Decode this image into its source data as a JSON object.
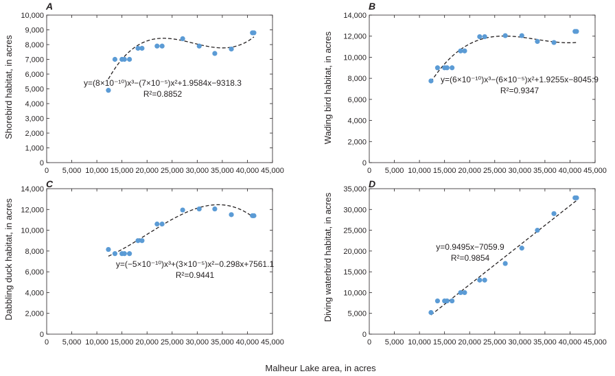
{
  "x_axis_title": "Malheur Lake area, in acres",
  "colors": {
    "point": "#5b9bd5",
    "axis": "#231f20",
    "fit": "#231f20"
  },
  "chart_data": [
    {
      "panel": "A",
      "type": "scatter",
      "ylabel": "Shorebird habitat, in acres",
      "xlim": [
        0,
        45000
      ],
      "ylim": [
        0,
        10000
      ],
      "x_ticks": [
        0,
        5000,
        10000,
        15000,
        20000,
        25000,
        30000,
        35000,
        40000,
        45000
      ],
      "x_tick_labels": [
        "0",
        "5,000",
        "10,000",
        "15,000",
        "20,000",
        "25,000",
        "30,000",
        "35,000",
        "40,000",
        "45,000"
      ],
      "y_ticks": [
        0,
        1000,
        2000,
        3000,
        4000,
        5000,
        6000,
        7000,
        8000,
        9000,
        10000
      ],
      "y_tick_labels": [
        "0",
        "1,000",
        "2,000",
        "3,000",
        "4,000",
        "5,000",
        "6,000",
        "7,000",
        "8,000",
        "9,000",
        "10,000"
      ],
      "points": [
        [
          12300,
          4900
        ],
        [
          13600,
          7000
        ],
        [
          15000,
          7000
        ],
        [
          15500,
          7000
        ],
        [
          16500,
          7000
        ],
        [
          18200,
          7750
        ],
        [
          19000,
          7750
        ],
        [
          22000,
          7900
        ],
        [
          23000,
          7900
        ],
        [
          27100,
          8400
        ],
        [
          30400,
          7900
        ],
        [
          33500,
          7400
        ],
        [
          36800,
          7700
        ],
        [
          41000,
          8800
        ],
        [
          41300,
          8800
        ]
      ],
      "fit": {
        "kind": "poly",
        "coefficients": [
          8e-10,
          -7e-05,
          1.9584,
          -9318.3
        ],
        "x_range": [
          12300,
          41300
        ]
      },
      "equation": "y=(8×10⁻¹⁰)x³−(7×10⁻⁵)x²+1.9584x−9318.3",
      "r2": "R²=0.8852"
    },
    {
      "panel": "B",
      "type": "scatter",
      "ylabel": "Wading bird habitat, in acres",
      "xlim": [
        0,
        45000
      ],
      "ylim": [
        0,
        14000
      ],
      "x_ticks": [
        0,
        5000,
        10000,
        15000,
        20000,
        25000,
        30000,
        35000,
        40000,
        45000
      ],
      "x_tick_labels": [
        "0",
        "5,000",
        "10,000",
        "15,000",
        "20,000",
        "25,000",
        "30,000",
        "35,000",
        "40,000",
        "45,000"
      ],
      "y_ticks": [
        0,
        2000,
        4000,
        6000,
        8000,
        10000,
        12000,
        14000
      ],
      "y_tick_labels": [
        "0",
        "2,000",
        "4,000",
        "6,000",
        "8,000",
        "10,000",
        "12,000",
        "14,000"
      ],
      "points": [
        [
          12300,
          7750
        ],
        [
          13600,
          9000
        ],
        [
          15000,
          9000
        ],
        [
          15500,
          9000
        ],
        [
          16500,
          9000
        ],
        [
          18200,
          10600
        ],
        [
          19000,
          10600
        ],
        [
          22000,
          11950
        ],
        [
          23000,
          11950
        ],
        [
          27100,
          12050
        ],
        [
          30400,
          12050
        ],
        [
          33500,
          11500
        ],
        [
          36800,
          11400
        ],
        [
          41000,
          12450
        ],
        [
          41300,
          12450
        ]
      ],
      "fit": {
        "kind": "poly",
        "coefficients": [
          6e-10,
          -6e-05,
          1.9255,
          -8045.9
        ],
        "x_range": [
          12300,
          41300
        ]
      },
      "equation": "y=(6×10⁻¹⁰)x³−(6×10⁻⁵)x²+1.9255x−8045.9",
      "r2": "R²=0.9347"
    },
    {
      "panel": "C",
      "type": "scatter",
      "ylabel": "Dabbling duck habitat, in acres",
      "xlim": [
        0,
        45000
      ],
      "ylim": [
        0,
        14000
      ],
      "x_ticks": [
        0,
        5000,
        10000,
        15000,
        20000,
        25000,
        30000,
        35000,
        40000,
        45000
      ],
      "x_tick_labels": [
        "0",
        "5,000",
        "10,000",
        "15,000",
        "20,000",
        "25,000",
        "30,000",
        "35,000",
        "40,000",
        "45,000"
      ],
      "y_ticks": [
        0,
        2000,
        4000,
        6000,
        8000,
        10000,
        12000,
        14000
      ],
      "y_tick_labels": [
        "0",
        "2,000",
        "4,000",
        "6,000",
        "8,000",
        "10,000",
        "12,000",
        "14,000"
      ],
      "points": [
        [
          12300,
          8150
        ],
        [
          13600,
          7750
        ],
        [
          15000,
          7750
        ],
        [
          15500,
          7750
        ],
        [
          16500,
          7750
        ],
        [
          18200,
          9000
        ],
        [
          19000,
          9000
        ],
        [
          22000,
          10600
        ],
        [
          23000,
          10600
        ],
        [
          27100,
          11950
        ],
        [
          30400,
          12050
        ],
        [
          33500,
          12050
        ],
        [
          36800,
          11500
        ],
        [
          41000,
          11400
        ],
        [
          41300,
          11400
        ]
      ],
      "fit": {
        "kind": "poly",
        "coefficients": [
          -5e-10,
          3e-05,
          -0.298,
          7561.1
        ],
        "x_range": [
          12300,
          41300
        ]
      },
      "equation": "y=(−5×10⁻¹⁰)x³+(3×10⁻⁵)x²−0.298x+7561.1",
      "r2": "R²=0.9441"
    },
    {
      "panel": "D",
      "type": "scatter",
      "ylabel": "Diving waterbird habitat, in acres",
      "xlim": [
        0,
        45000
      ],
      "ylim": [
        0,
        35000
      ],
      "x_ticks": [
        0,
        5000,
        10000,
        15000,
        20000,
        25000,
        30000,
        35000,
        40000,
        45000
      ],
      "x_tick_labels": [
        "0",
        "5,000",
        "10,000",
        "15,000",
        "20,000",
        "25,000",
        "30,000",
        "35,000",
        "40,000",
        "45,000"
      ],
      "y_ticks": [
        0,
        5000,
        10000,
        15000,
        20000,
        25000,
        30000,
        35000
      ],
      "y_tick_labels": [
        "0",
        "5,000",
        "10,000",
        "15,000",
        "20,000",
        "25,000",
        "30,000",
        "35,000"
      ],
      "points": [
        [
          12300,
          5200
        ],
        [
          13600,
          8000
        ],
        [
          15000,
          8000
        ],
        [
          15500,
          8000
        ],
        [
          16500,
          8000
        ],
        [
          18200,
          10000
        ],
        [
          19000,
          10000
        ],
        [
          22000,
          13000
        ],
        [
          23000,
          13000
        ],
        [
          27100,
          17000
        ],
        [
          30400,
          20700
        ],
        [
          33500,
          25000
        ],
        [
          36800,
          29000
        ],
        [
          41000,
          32800
        ],
        [
          41300,
          32800
        ]
      ],
      "fit": {
        "kind": "poly",
        "coefficients": [
          0.9495,
          -7059.9
        ],
        "x_range": [
          12300,
          41300
        ]
      },
      "equation": "y=0.9495x−7059.9",
      "r2": "R²=0.9854"
    }
  ]
}
